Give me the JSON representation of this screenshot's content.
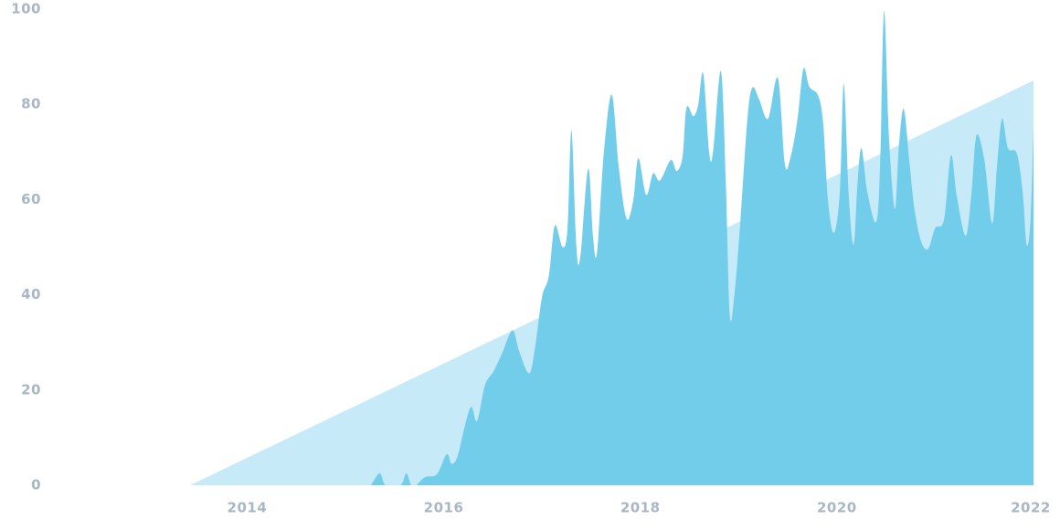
{
  "chart_data": {
    "type": "area",
    "xlim": [
      2013.42,
      2022
    ],
    "xticks": [
      2014,
      2016,
      2018,
      2020,
      2022
    ],
    "ylim": [
      0,
      100
    ],
    "yticks": [
      0,
      20,
      40,
      60,
      80,
      100
    ],
    "grid": false,
    "series": [
      {
        "color": "#c6eaf8",
        "smooth": false,
        "x": [
          2013.42,
          2022
        ],
        "values": [
          0,
          85
        ]
      },
      {
        "color": "#72cdea",
        "smooth": true,
        "x": [
          2015.26,
          2015.35,
          2015.41,
          2015.56,
          2015.62,
          2015.67,
          2015.72,
          2015.81,
          2015.93,
          2016.03,
          2016.08,
          2016.14,
          2016.21,
          2016.28,
          2016.34,
          2016.42,
          2016.51,
          2016.6,
          2016.7,
          2016.77,
          2016.87,
          2016.93,
          2017.0,
          2017.07,
          2017.13,
          2017.21,
          2017.26,
          2017.3,
          2017.35,
          2017.39,
          2017.47,
          2017.52,
          2017.56,
          2017.63,
          2017.71,
          2017.78,
          2017.86,
          2017.93,
          2017.98,
          2018.06,
          2018.13,
          2018.2,
          2018.31,
          2018.37,
          2018.43,
          2018.47,
          2018.54,
          2018.59,
          2018.64,
          2018.7,
          2018.74,
          2018.82,
          2018.87,
          2018.91,
          2018.96,
          2019.02,
          2019.09,
          2019.14,
          2019.21,
          2019.3,
          2019.4,
          2019.47,
          2019.53,
          2019.6,
          2019.66,
          2019.72,
          2019.81,
          2019.86,
          2019.91,
          2019.97,
          2020.03,
          2020.07,
          2020.12,
          2020.17,
          2020.21,
          2020.25,
          2020.31,
          2020.4,
          2020.44,
          2020.48,
          2020.53,
          2020.59,
          2020.63,
          2020.68,
          2020.74,
          2020.79,
          2020.86,
          2020.93,
          2021.0,
          2021.09,
          2021.16,
          2021.22,
          2021.31,
          2021.37,
          2021.42,
          2021.5,
          2021.58,
          2021.63,
          2021.68,
          2021.74,
          2021.83,
          2021.89,
          2021.93,
          2021.97,
          2022
        ],
        "values": [
          0,
          2.5,
          0,
          0,
          2.5,
          0,
          0,
          1.7,
          2.3,
          6.5,
          4.5,
          6,
          12,
          16.5,
          13.5,
          21,
          24,
          28,
          32.5,
          28,
          23.5,
          29,
          39.5,
          44,
          54.5,
          50,
          54,
          74.5,
          50,
          48,
          66.5,
          52,
          49,
          70,
          82,
          67,
          56,
          60,
          68.7,
          61,
          65.5,
          64,
          68.3,
          66,
          69,
          79.3,
          77.5,
          80,
          86.5,
          70,
          70,
          87,
          63.5,
          35.7,
          40.5,
          56,
          77,
          83.5,
          81,
          77,
          85.5,
          67.5,
          69,
          77,
          87.5,
          83.7,
          81.8,
          76,
          59.7,
          53,
          61.6,
          84.3,
          61,
          50.5,
          63.5,
          70.8,
          61.6,
          55.3,
          67.4,
          99.6,
          73,
          58,
          71,
          79,
          67.4,
          57.8,
          51,
          49.7,
          54,
          55.8,
          69.3,
          60.7,
          52.4,
          61.6,
          73.5,
          68.3,
          55,
          67.4,
          77,
          70.8,
          69.7,
          61.6,
          50.5,
          55.8,
          75
        ]
      }
    ]
  }
}
